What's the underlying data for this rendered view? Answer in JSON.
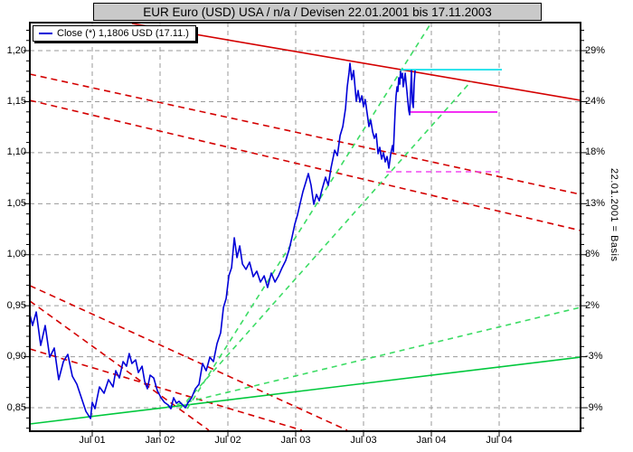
{
  "title_bar": {
    "text": "EUR Euro (USD) USA / n/a / Devisen 22.01.2001 bis 17.11.2003"
  },
  "legend": {
    "label": "Close (*) 1,1806 USD (17.11.)",
    "line_color": "#0000d8"
  },
  "chart_data": {
    "type": "line",
    "title": "EUR Euro (USD) USA / n/a / Devisen 22.01.2001 bis 17.11.2003",
    "right_axis_note": "22.01.2001 = Basis",
    "grid_color": "#9a9a9a",
    "x_axis": {
      "range": [
        2001.04,
        2005.1
      ],
      "ticks": [
        {
          "t": 2001.5,
          "label": "Jul 01"
        },
        {
          "t": 2002.0,
          "label": "Jan 02"
        },
        {
          "t": 2002.5,
          "label": "Jul 02"
        },
        {
          "t": 2003.0,
          "label": "Jan 03"
        },
        {
          "t": 2003.5,
          "label": "Jul 03"
        },
        {
          "t": 2004.0,
          "label": "Jan 04"
        },
        {
          "t": 2004.5,
          "label": "Jul 04"
        }
      ]
    },
    "y_axis": {
      "range": [
        0.827,
        1.2275
      ],
      "minor_step": 0.01,
      "ticks": [
        {
          "v": 1.2,
          "left_label": "1,20",
          "right_label": "29%"
        },
        {
          "v": 1.15,
          "left_label": "1,15",
          "right_label": "24%"
        },
        {
          "v": 1.1,
          "left_label": "1,10",
          "right_label": "18%"
        },
        {
          "v": 1.05,
          "left_label": "1,05",
          "right_label": "13%"
        },
        {
          "v": 1.0,
          "left_label": "1,00",
          "right_label": "8%"
        },
        {
          "v": 0.95,
          "left_label": "0,95",
          "right_label": "2%"
        },
        {
          "v": 0.9,
          "left_label": "0,90",
          "right_label": "-3%"
        },
        {
          "v": 0.85,
          "left_label": "0,85",
          "right_label": "-9%"
        }
      ]
    },
    "series": [
      {
        "name": "Close",
        "color": "#0000d8",
        "last_value": "1,1806 USD (17.11.)",
        "points": [
          [
            2001.04,
            0.9413
          ],
          [
            2001.06,
            0.9306
          ],
          [
            2001.087,
            0.9439
          ],
          [
            2001.12,
            0.9111
          ],
          [
            2001.153,
            0.9306
          ],
          [
            2001.187,
            0.8996
          ],
          [
            2001.22,
            0.9085
          ],
          [
            2001.253,
            0.8775
          ],
          [
            2001.287,
            0.8952
          ],
          [
            2001.32,
            0.9023
          ],
          [
            2001.353,
            0.881
          ],
          [
            2001.387,
            0.8731
          ],
          [
            2001.42,
            0.8598
          ],
          [
            2001.453,
            0.8465
          ],
          [
            2001.487,
            0.8394
          ],
          [
            2001.5,
            0.8553
          ],
          [
            2001.52,
            0.8491
          ],
          [
            2001.553,
            0.8704
          ],
          [
            2001.587,
            0.8642
          ],
          [
            2001.62,
            0.8775
          ],
          [
            2001.653,
            0.8704
          ],
          [
            2001.673,
            0.8863
          ],
          [
            2001.7,
            0.8792
          ],
          [
            2001.727,
            0.8952
          ],
          [
            2001.753,
            0.8907
          ],
          [
            2001.773,
            0.9031
          ],
          [
            2001.793,
            0.8934
          ],
          [
            2001.82,
            0.8969
          ],
          [
            2001.84,
            0.8845
          ],
          [
            2001.867,
            0.8907
          ],
          [
            2001.887,
            0.8757
          ],
          [
            2001.907,
            0.8686
          ],
          [
            2001.927,
            0.8819
          ],
          [
            2001.953,
            0.8792
          ],
          [
            2001.98,
            0.8668
          ],
          [
            2002.007,
            0.8598
          ],
          [
            2002.033,
            0.8553
          ],
          [
            2002.06,
            0.8527
          ],
          [
            2002.08,
            0.8491
          ],
          [
            2002.1,
            0.8598
          ],
          [
            2002.12,
            0.8545
          ],
          [
            2002.14,
            0.8563
          ],
          [
            2002.167,
            0.8527
          ],
          [
            2002.187,
            0.85
          ],
          [
            2002.207,
            0.8553
          ],
          [
            2002.233,
            0.8598
          ],
          [
            2002.26,
            0.8686
          ],
          [
            2002.287,
            0.8731
          ],
          [
            2002.313,
            0.8934
          ],
          [
            2002.34,
            0.8863
          ],
          [
            2002.367,
            0.8996
          ],
          [
            2002.393,
            0.8952
          ],
          [
            2002.42,
            0.9129
          ],
          [
            2002.447,
            0.9235
          ],
          [
            2002.467,
            0.9483
          ],
          [
            2002.487,
            0.9572
          ],
          [
            2002.507,
            0.9793
          ],
          [
            2002.527,
            0.9873
          ],
          [
            2002.547,
            1.0166
          ],
          [
            2002.567,
            0.9971
          ],
          [
            2002.587,
            1.0086
          ],
          [
            2002.607,
            0.9909
          ],
          [
            2002.633,
            0.9856
          ],
          [
            2002.66,
            0.9927
          ],
          [
            2002.687,
            0.9785
          ],
          [
            2002.713,
            0.9838
          ],
          [
            2002.74,
            0.9732
          ],
          [
            2002.767,
            0.9793
          ],
          [
            2002.793,
            0.9679
          ],
          [
            2002.82,
            0.982
          ],
          [
            2002.847,
            0.9732
          ],
          [
            2002.873,
            0.9793
          ],
          [
            2002.9,
            0.9873
          ],
          [
            2002.927,
            0.9944
          ],
          [
            2002.953,
            1.0059
          ],
          [
            2002.973,
            1.0175
          ],
          [
            2002.993,
            1.0299
          ],
          [
            2003.013,
            1.0387
          ],
          [
            2003.033,
            1.0503
          ],
          [
            2003.053,
            1.0618
          ],
          [
            2003.073,
            1.0706
          ],
          [
            2003.093,
            1.0795
          ],
          [
            2003.113,
            1.068
          ],
          [
            2003.133,
            1.0494
          ],
          [
            2003.153,
            1.0591
          ],
          [
            2003.173,
            1.0529
          ],
          [
            2003.193,
            1.0636
          ],
          [
            2003.22,
            1.076
          ],
          [
            2003.24,
            1.068
          ],
          [
            2003.26,
            1.0848
          ],
          [
            2003.287,
            1.1025
          ],
          [
            2003.307,
            1.0972
          ],
          [
            2003.327,
            1.1167
          ],
          [
            2003.347,
            1.1256
          ],
          [
            2003.367,
            1.1433
          ],
          [
            2003.38,
            1.1646
          ],
          [
            2003.393,
            1.1787
          ],
          [
            2003.4,
            1.1876
          ],
          [
            2003.413,
            1.1716
          ],
          [
            2003.427,
            1.1805
          ],
          [
            2003.447,
            1.1504
          ],
          [
            2003.46,
            1.161
          ],
          [
            2003.473,
            1.1495
          ],
          [
            2003.487,
            1.1557
          ],
          [
            2003.5,
            1.1451
          ],
          [
            2003.513,
            1.1521
          ],
          [
            2003.527,
            1.138
          ],
          [
            2003.54,
            1.1256
          ],
          [
            2003.553,
            1.1318
          ],
          [
            2003.567,
            1.1203
          ],
          [
            2003.58,
            1.1141
          ],
          [
            2003.593,
            1.1185
          ],
          [
            2003.607,
            1.099
          ],
          [
            2003.62,
            1.1052
          ],
          [
            2003.633,
            1.0937
          ],
          [
            2003.647,
            1.0999
          ],
          [
            2003.66,
            1.091
          ],
          [
            2003.673,
            1.0963
          ],
          [
            2003.687,
            1.0848
          ],
          [
            2003.7,
            1.0981
          ],
          [
            2003.713,
            1.107
          ],
          [
            2003.72,
            1.1008
          ],
          [
            2003.733,
            1.1415
          ],
          [
            2003.74,
            1.1557
          ],
          [
            2003.747,
            1.1646
          ],
          [
            2003.753,
            1.1601
          ],
          [
            2003.76,
            1.1734
          ],
          [
            2003.767,
            1.1672
          ],
          [
            2003.773,
            1.1796
          ],
          [
            2003.78,
            1.1734
          ],
          [
            2003.787,
            1.1779
          ],
          [
            2003.793,
            1.1646
          ],
          [
            2003.8,
            1.1708
          ],
          [
            2003.807,
            1.1779
          ],
          [
            2003.813,
            1.169
          ],
          [
            2003.82,
            1.1601
          ],
          [
            2003.827,
            1.1495
          ],
          [
            2003.833,
            1.1415
          ],
          [
            2003.84,
            1.1371
          ],
          [
            2003.847,
            1.161
          ],
          [
            2003.853,
            1.1805
          ],
          [
            2003.86,
            1.1495
          ],
          [
            2003.867,
            1.1442
          ],
          [
            2003.873,
            1.1681
          ],
          [
            2003.88,
            1.1806
          ]
        ]
      }
    ],
    "trend_lines": [
      {
        "name": "down-trend-main",
        "color": "#d40000",
        "dash": "",
        "points": [
          [
            2001.793,
            1.2266
          ],
          [
            2005.1,
            1.1513
          ]
        ]
      },
      {
        "name": "down-channel-upper",
        "color": "#d40000",
        "dash": "7,5",
        "points": [
          [
            2001.04,
            1.177
          ],
          [
            2005.1,
            1.0591
          ]
        ]
      },
      {
        "name": "down-channel-lower",
        "color": "#d40000",
        "dash": "7,5",
        "points": [
          [
            2001.04,
            1.1513
          ],
          [
            2005.1,
            1.0237
          ]
        ]
      },
      {
        "name": "down-fan-steep",
        "color": "#d40000",
        "dash": "7,5",
        "points": [
          [
            2001.04,
            0.9697
          ],
          [
            2003.38,
            0.8279
          ]
        ]
      },
      {
        "name": "down-fan-steepest",
        "color": "#d40000",
        "dash": "7,5",
        "points": [
          [
            2001.04,
            0.9546
          ],
          [
            2002.36,
            0.8279
          ]
        ]
      },
      {
        "name": "down-fan-low",
        "color": "#d40000",
        "dash": "7,5",
        "points": [
          [
            2001.04,
            0.9076
          ],
          [
            2003.047,
            0.8279
          ]
        ]
      },
      {
        "name": "up-support-main",
        "color": "#00c83c",
        "dash": "",
        "points": [
          [
            2001.04,
            0.8341
          ],
          [
            2005.1,
            0.8996
          ]
        ]
      },
      {
        "name": "up-support-dashed",
        "color": "#3cdc64",
        "dash": "6,5",
        "points": [
          [
            2002.053,
            0.8509
          ],
          [
            2005.1,
            0.9484
          ]
        ]
      },
      {
        "name": "up-fan-steep-1",
        "color": "#3cdc64",
        "dash": "6,5",
        "points": [
          [
            2002.2,
            0.8491
          ],
          [
            2004.0,
            1.2275
          ]
        ]
      },
      {
        "name": "up-fan-steep-2",
        "color": "#3cdc64",
        "dash": "6,5",
        "points": [
          [
            2002.147,
            0.8491
          ],
          [
            2004.293,
            1.1699
          ]
        ]
      },
      {
        "name": "resistance-level",
        "color": "#00dde8",
        "dash": "",
        "points": [
          [
            2003.773,
            1.1814
          ],
          [
            2004.52,
            1.1814
          ]
        ]
      },
      {
        "name": "support-level",
        "color": "#f000f0",
        "dash": "",
        "points": [
          [
            2003.84,
            1.1398
          ],
          [
            2004.487,
            1.1398
          ]
        ]
      },
      {
        "name": "support-level-dashed",
        "color": "#f048f0",
        "dash": "6,5",
        "points": [
          [
            2003.667,
            1.0813
          ],
          [
            2004.5,
            1.0813
          ]
        ]
      }
    ]
  }
}
